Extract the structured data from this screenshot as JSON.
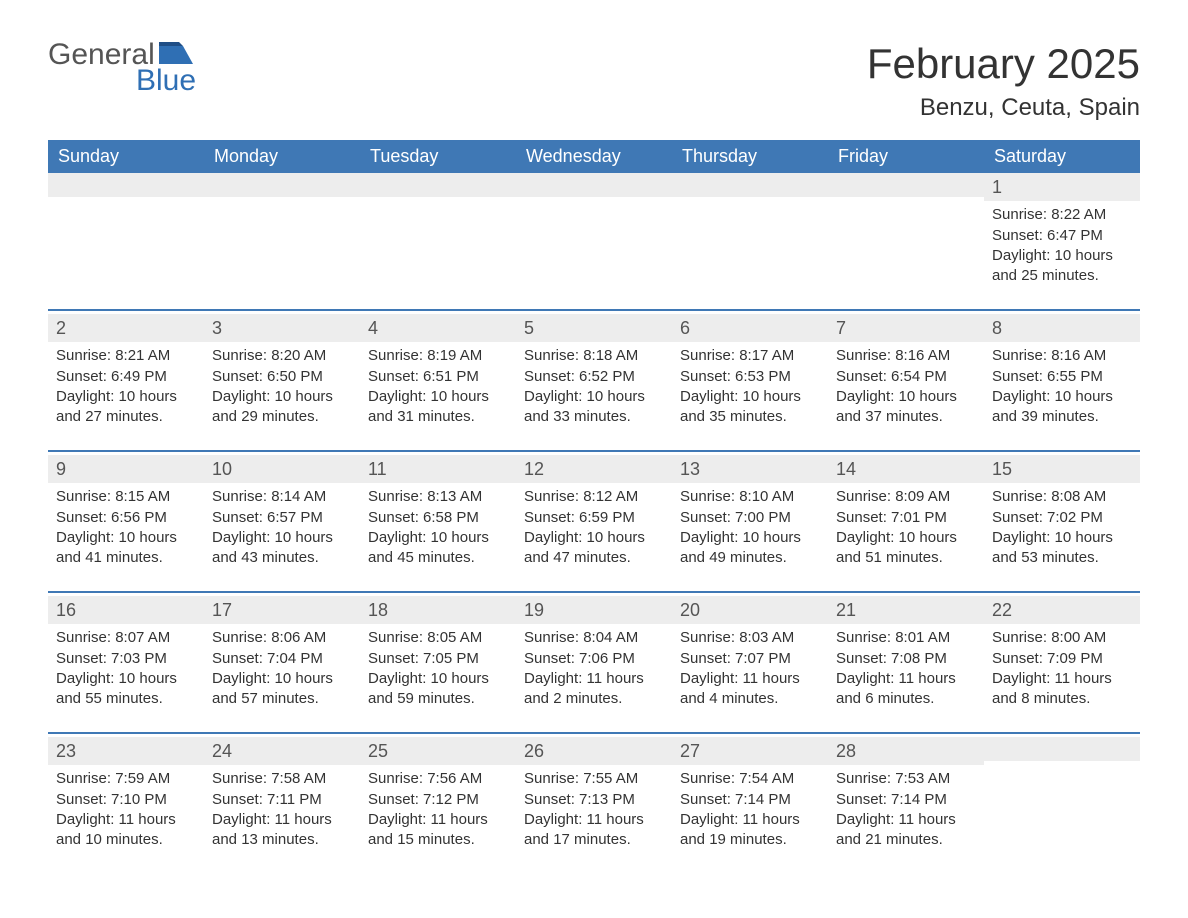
{
  "brand": {
    "word1": "General",
    "word2": "Blue"
  },
  "title": "February 2025",
  "location": "Benzu, Ceuta, Spain",
  "colors": {
    "header_bg": "#3f78b5",
    "header_text": "#ffffff",
    "daynum_bg": "#ededed",
    "separator": "#3f78b5",
    "text": "#333333",
    "brand_blue": "#2f6fb4",
    "page_bg": "#ffffff"
  },
  "weekdays": [
    "Sunday",
    "Monday",
    "Tuesday",
    "Wednesday",
    "Thursday",
    "Friday",
    "Saturday"
  ],
  "layout": {
    "start_day_index": 6,
    "days_in_month": 28,
    "weeks": 5
  },
  "days": {
    "1": {
      "sunrise": "8:22 AM",
      "sunset": "6:47 PM",
      "daylight": "10 hours and 25 minutes."
    },
    "2": {
      "sunrise": "8:21 AM",
      "sunset": "6:49 PM",
      "daylight": "10 hours and 27 minutes."
    },
    "3": {
      "sunrise": "8:20 AM",
      "sunset": "6:50 PM",
      "daylight": "10 hours and 29 minutes."
    },
    "4": {
      "sunrise": "8:19 AM",
      "sunset": "6:51 PM",
      "daylight": "10 hours and 31 minutes."
    },
    "5": {
      "sunrise": "8:18 AM",
      "sunset": "6:52 PM",
      "daylight": "10 hours and 33 minutes."
    },
    "6": {
      "sunrise": "8:17 AM",
      "sunset": "6:53 PM",
      "daylight": "10 hours and 35 minutes."
    },
    "7": {
      "sunrise": "8:16 AM",
      "sunset": "6:54 PM",
      "daylight": "10 hours and 37 minutes."
    },
    "8": {
      "sunrise": "8:16 AM",
      "sunset": "6:55 PM",
      "daylight": "10 hours and 39 minutes."
    },
    "9": {
      "sunrise": "8:15 AM",
      "sunset": "6:56 PM",
      "daylight": "10 hours and 41 minutes."
    },
    "10": {
      "sunrise": "8:14 AM",
      "sunset": "6:57 PM",
      "daylight": "10 hours and 43 minutes."
    },
    "11": {
      "sunrise": "8:13 AM",
      "sunset": "6:58 PM",
      "daylight": "10 hours and 45 minutes."
    },
    "12": {
      "sunrise": "8:12 AM",
      "sunset": "6:59 PM",
      "daylight": "10 hours and 47 minutes."
    },
    "13": {
      "sunrise": "8:10 AM",
      "sunset": "7:00 PM",
      "daylight": "10 hours and 49 minutes."
    },
    "14": {
      "sunrise": "8:09 AM",
      "sunset": "7:01 PM",
      "daylight": "10 hours and 51 minutes."
    },
    "15": {
      "sunrise": "8:08 AM",
      "sunset": "7:02 PM",
      "daylight": "10 hours and 53 minutes."
    },
    "16": {
      "sunrise": "8:07 AM",
      "sunset": "7:03 PM",
      "daylight": "10 hours and 55 minutes."
    },
    "17": {
      "sunrise": "8:06 AM",
      "sunset": "7:04 PM",
      "daylight": "10 hours and 57 minutes."
    },
    "18": {
      "sunrise": "8:05 AM",
      "sunset": "7:05 PM",
      "daylight": "10 hours and 59 minutes."
    },
    "19": {
      "sunrise": "8:04 AM",
      "sunset": "7:06 PM",
      "daylight": "11 hours and 2 minutes."
    },
    "20": {
      "sunrise": "8:03 AM",
      "sunset": "7:07 PM",
      "daylight": "11 hours and 4 minutes."
    },
    "21": {
      "sunrise": "8:01 AM",
      "sunset": "7:08 PM",
      "daylight": "11 hours and 6 minutes."
    },
    "22": {
      "sunrise": "8:00 AM",
      "sunset": "7:09 PM",
      "daylight": "11 hours and 8 minutes."
    },
    "23": {
      "sunrise": "7:59 AM",
      "sunset": "7:10 PM",
      "daylight": "11 hours and 10 minutes."
    },
    "24": {
      "sunrise": "7:58 AM",
      "sunset": "7:11 PM",
      "daylight": "11 hours and 13 minutes."
    },
    "25": {
      "sunrise": "7:56 AM",
      "sunset": "7:12 PM",
      "daylight": "11 hours and 15 minutes."
    },
    "26": {
      "sunrise": "7:55 AM",
      "sunset": "7:13 PM",
      "daylight": "11 hours and 17 minutes."
    },
    "27": {
      "sunrise": "7:54 AM",
      "sunset": "7:14 PM",
      "daylight": "11 hours and 19 minutes."
    },
    "28": {
      "sunrise": "7:53 AM",
      "sunset": "7:14 PM",
      "daylight": "11 hours and 21 minutes."
    }
  },
  "labels": {
    "sunrise_prefix": "Sunrise: ",
    "sunset_prefix": "Sunset: ",
    "daylight_prefix": "Daylight: "
  }
}
